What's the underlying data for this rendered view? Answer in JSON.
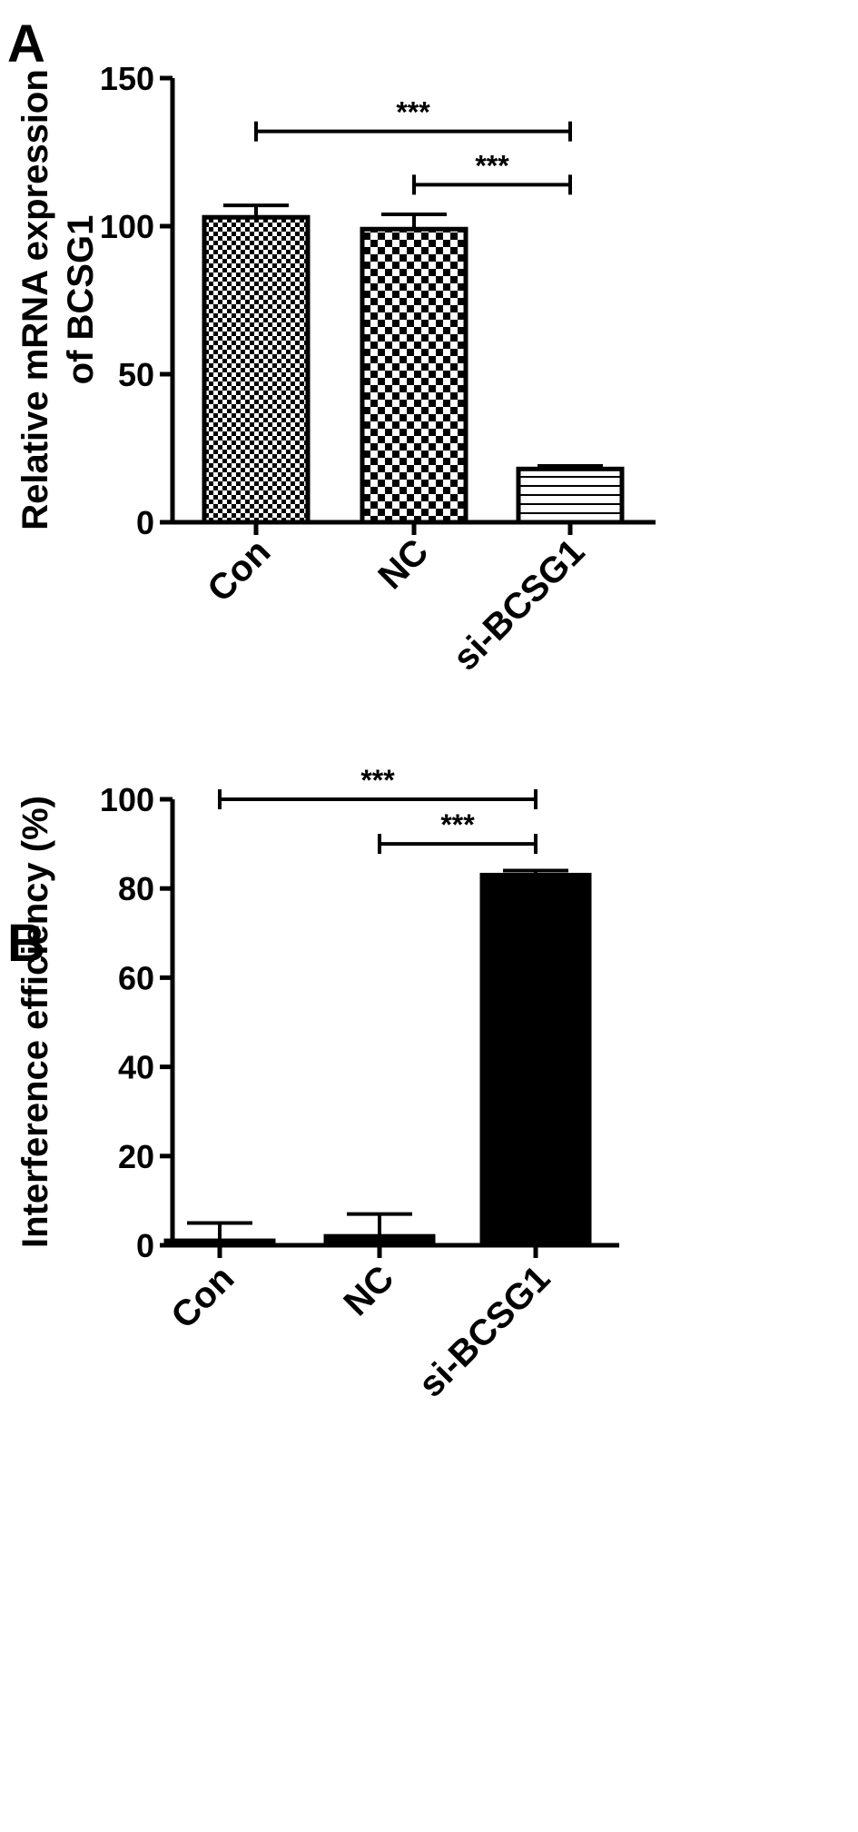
{
  "chart_data": [
    {
      "panel": "A",
      "type": "bar",
      "categories": [
        "Con",
        "NC",
        "si-BCSG1"
      ],
      "values": [
        103,
        99,
        18
      ],
      "errors": [
        4,
        5,
        1
      ],
      "patterns": [
        "fine-checker",
        "coarse-checker",
        "horizontal-lines"
      ],
      "ylabel_lines": [
        "Relative mRNA expression",
        "of BCSG1"
      ],
      "ylim": [
        0,
        150
      ],
      "yticks": [
        0,
        50,
        100,
        150
      ],
      "significance": [
        {
          "from": 0,
          "to": 2,
          "label": "***",
          "y": 132
        },
        {
          "from": 1,
          "to": 2,
          "label": "***",
          "y": 114
        }
      ]
    },
    {
      "panel": "B",
      "type": "bar",
      "categories": [
        "Con",
        "NC",
        "si-BCSG1"
      ],
      "values": [
        1,
        2,
        83
      ],
      "errors": [
        4,
        5,
        1
      ],
      "patterns": [
        "solid",
        "solid",
        "solid"
      ],
      "ylabel_lines": [
        "Interference efficiency (%)"
      ],
      "ylim": [
        0,
        100
      ],
      "yticks": [
        0,
        20,
        40,
        60,
        80,
        100
      ],
      "significance": [
        {
          "from": 0,
          "to": 2,
          "label": "***",
          "y": 100
        },
        {
          "from": 1,
          "to": 2,
          "label": "***",
          "y": 90
        }
      ]
    }
  ],
  "colors": {
    "ink": "#000000",
    "background": "#ffffff"
  }
}
